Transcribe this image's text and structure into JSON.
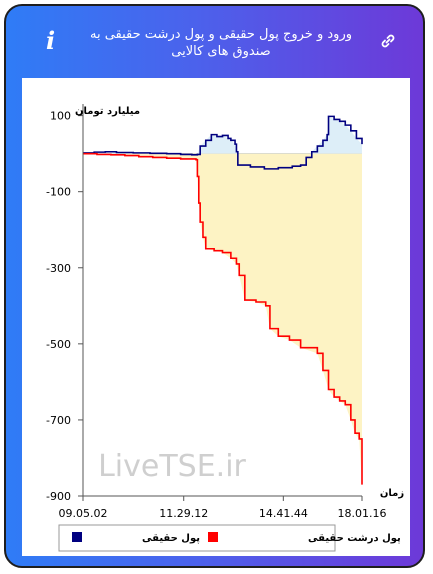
{
  "header": {
    "title": "ورود و خروج پول حقیقی و پول درشت حقیقی به صندوق های کالایی",
    "info_icon": "info-icon",
    "link_icon": "link-icon"
  },
  "watermark": "LiveTSE.ir",
  "chart_data": {
    "type": "line",
    "ylabel": "میلیارد تومان",
    "xlabel": "زمان",
    "ylim": [
      -900,
      120
    ],
    "yticks": [
      100,
      -100,
      -300,
      -500,
      -700,
      -900
    ],
    "xticks": [
      {
        "label": "09.05.02",
        "pos": 0.0
      },
      {
        "label": "11.29.12",
        "pos": 0.361
      },
      {
        "label": "14.41.44",
        "pos": 0.718
      },
      {
        "label": "18.01.16",
        "pos": 1.0
      }
    ],
    "legend": {
      "placement": "bottom",
      "entries": [
        "پول حقیقی",
        "پول درشت حقیقی"
      ]
    },
    "colors": {
      "real": "#000080",
      "big": "#ff0000",
      "fill_pos": "#ddeef8",
      "fill_neg": "#fdf3c4"
    },
    "series": [
      {
        "name": "پول حقیقی",
        "color": "#000080",
        "points": [
          [
            0,
            2
          ],
          [
            0.04,
            4
          ],
          [
            0.08,
            5
          ],
          [
            0.12,
            3
          ],
          [
            0.18,
            2
          ],
          [
            0.24,
            1
          ],
          [
            0.3,
            0
          ],
          [
            0.35,
            -2
          ],
          [
            0.39,
            -3
          ],
          [
            0.41,
            -2
          ],
          [
            0.42,
            20
          ],
          [
            0.44,
            35
          ],
          [
            0.46,
            50
          ],
          [
            0.48,
            45
          ],
          [
            0.5,
            48
          ],
          [
            0.52,
            40
          ],
          [
            0.53,
            35
          ],
          [
            0.545,
            25
          ],
          [
            0.55,
            5
          ],
          [
            0.555,
            -30
          ],
          [
            0.6,
            -35
          ],
          [
            0.65,
            -40
          ],
          [
            0.7,
            -37
          ],
          [
            0.75,
            -33
          ],
          [
            0.78,
            -30
          ],
          [
            0.8,
            -10
          ],
          [
            0.82,
            5
          ],
          [
            0.84,
            20
          ],
          [
            0.86,
            35
          ],
          [
            0.875,
            50
          ],
          [
            0.88,
            98
          ],
          [
            0.9,
            90
          ],
          [
            0.92,
            85
          ],
          [
            0.94,
            75
          ],
          [
            0.96,
            60
          ],
          [
            0.98,
            40
          ],
          [
            1.0,
            25
          ]
        ]
      },
      {
        "name": "پول درشت حقیقی",
        "color": "#ff0000",
        "points": [
          [
            0,
            0
          ],
          [
            0.05,
            -2
          ],
          [
            0.1,
            -3
          ],
          [
            0.15,
            -5
          ],
          [
            0.2,
            -8
          ],
          [
            0.25,
            -10
          ],
          [
            0.3,
            -12
          ],
          [
            0.35,
            -14
          ],
          [
            0.405,
            -16
          ],
          [
            0.41,
            -60
          ],
          [
            0.415,
            -130
          ],
          [
            0.42,
            -180
          ],
          [
            0.43,
            -220
          ],
          [
            0.44,
            -250
          ],
          [
            0.47,
            -255
          ],
          [
            0.5,
            -260
          ],
          [
            0.53,
            -275
          ],
          [
            0.55,
            -290
          ],
          [
            0.56,
            -320
          ],
          [
            0.58,
            -385
          ],
          [
            0.62,
            -390
          ],
          [
            0.655,
            -400
          ],
          [
            0.67,
            -460
          ],
          [
            0.7,
            -480
          ],
          [
            0.74,
            -490
          ],
          [
            0.78,
            -510
          ],
          [
            0.84,
            -525
          ],
          [
            0.86,
            -570
          ],
          [
            0.88,
            -620
          ],
          [
            0.9,
            -640
          ],
          [
            0.92,
            -650
          ],
          [
            0.94,
            -660
          ],
          [
            0.96,
            -700
          ],
          [
            0.975,
            -735
          ],
          [
            0.99,
            -750
          ],
          [
            1.0,
            -870
          ]
        ]
      }
    ]
  }
}
